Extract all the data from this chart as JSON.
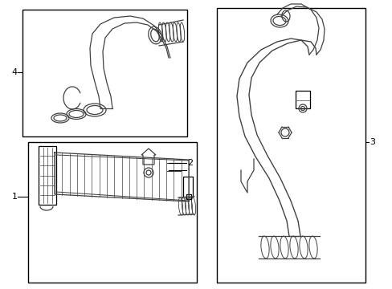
{
  "background_color": "#ffffff",
  "line_color": "#404040",
  "box_color": "#000000",
  "label_color": "#000000",
  "figsize": [
    4.89,
    3.6
  ],
  "dpi": 100
}
